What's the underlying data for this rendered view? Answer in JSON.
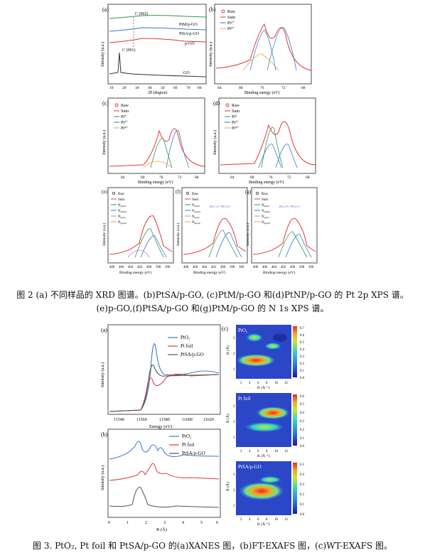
{
  "fig2": {
    "a": {
      "letter": "(a)",
      "labels": [
        "PtM/p-GO",
        "PtSA/p-GO",
        "p-GO",
        "GO"
      ],
      "peak002": "C (002)",
      "peak001": "C (001)",
      "ylabel": "Intensity (a.u.)",
      "xlabel": "2θ (degree)",
      "ticks": [
        "10",
        "20",
        "30",
        "40",
        "50",
        "60",
        "70",
        "80"
      ]
    },
    "b": {
      "letter": "(b)",
      "legend": [
        "Raw",
        "Sum",
        "Pt²⁺",
        "Pt⁴⁺"
      ],
      "ylabel": "Intensity (a.u.)",
      "xlabel": "Binding energy (eV)",
      "ticks": [
        "84",
        "80",
        "76",
        "72",
        "68"
      ]
    },
    "c": {
      "letter": "(c)",
      "legend": [
        "Raw",
        "Sum",
        "Pt⁰",
        "Pt²⁺",
        "Pt⁴⁺"
      ],
      "ylabel": "Intensity (a.u.)",
      "xlabel": "Binding energy (eV)",
      "ticks": [
        "84",
        "80",
        "76",
        "72",
        "68"
      ]
    },
    "d": {
      "letter": "(d)",
      "legend": [
        "Raw",
        "Sum",
        "Pt⁰",
        "Pt²⁺",
        "Pt⁴⁺"
      ],
      "ylabel": "Intensity (a.u.)",
      "xlabel": "Binding energy (eV)",
      "ticks": [
        "84",
        "80",
        "76",
        "72",
        "68"
      ]
    },
    "e": {
      "letter": "(e)",
      "legend": [
        "Raw",
        "Sum",
        "N",
        "N",
        "N",
        "N"
      ],
      "subs": [
        "pyrid",
        "amino",
        "pyrro",
        "graph"
      ],
      "ylabel": "Intensity (a.u.)",
      "xlabel": "Binding energy (eV)",
      "ticks": [
        "408",
        "406",
        "404",
        "402",
        "400",
        "398",
        "396"
      ]
    },
    "f": {
      "letter": "(f)",
      "legend": [
        "Raw",
        "Sum",
        "N",
        "N",
        "N",
        "N"
      ],
      "subs": [
        "pyrid",
        "amino",
        "pyrro",
        "graph"
      ],
      "note": "400.2 eV 398.4 eV",
      "ylabel": "Intensity (a.u.)",
      "xlabel": "Binding energy (eV)",
      "ticks": [
        "408",
        "406",
        "404",
        "402",
        "400",
        "398",
        "396"
      ]
    },
    "g": {
      "letter": "(g)",
      "legend": [
        "Raw",
        "Sum",
        "N",
        "N",
        "N",
        "N"
      ],
      "subs": [
        "pyrid",
        "amino",
        "pyrro",
        "graph"
      ],
      "note": "400.2 eV 398.4 eV",
      "ylabel": "Intensity (a.u.)",
      "xlabel": "Binding energy (eV)",
      "ticks": [
        "408",
        "406",
        "404",
        "402",
        "400",
        "398",
        "396"
      ]
    },
    "caption_line1": "图 2 (a) 不同样品的 XRD 图谱。(b)PtSA/p-GO, (c)PtM/p-GO 和(d)PtNP/p-GO 的 Pt 2p XPS 谱。",
    "caption_line2": "(e)p-GO,(f)PtSA/p-GO 和(g)PtM/p-GO 的 N 1s XPS 谱。"
  },
  "fig3": {
    "a": {
      "letter": "(a)",
      "legend": [
        "PtO₂",
        "Pt foil",
        "PtSA/p-GO"
      ],
      "ylabel": "Intensity (a.u.)",
      "xlabel": "Energy (eV)",
      "ticks": [
        "11540",
        "11560",
        "11580",
        "11600",
        "11620"
      ]
    },
    "b": {
      "letter": "(b)",
      "legend": [
        "PtO₂",
        "Pt foil",
        "PtSA/p-GO"
      ],
      "ylabel": "Intensity (a.u.)",
      "xlabel": "R (Å)",
      "ticks": [
        "0",
        "1",
        "2",
        "3",
        "4",
        "5",
        "6"
      ]
    },
    "c": {
      "letter": "(c)",
      "maps": [
        {
          "label": "PtO₂",
          "scale": [
            "0.7",
            "0.6",
            "0.5",
            "0.4",
            "0.3",
            "0.2",
            "0.1",
            "0.0"
          ]
        },
        {
          "label": "Pt foil",
          "scale": [
            "0.6",
            "0.5",
            "0.4",
            "0.3",
            "0.2",
            "0.1",
            "0.0"
          ]
        },
        {
          "label": "PtSA/p-GO",
          "scale": [
            "0.5",
            "0.4",
            "0.3",
            "0.2",
            "0.1",
            "0.0"
          ]
        }
      ],
      "xlabel": "K (Å⁻¹)",
      "ylabel": "R (Å)",
      "xticks": [
        "2",
        "4",
        "6",
        "8",
        "10",
        "12"
      ],
      "yticks": [
        "1",
        "2",
        "3"
      ]
    },
    "caption": "图 3. PtO₂, Pt foil  和 PtSA/p-GO 的(a)XANES 图，(b)FT-EXAFS 图，(c)WT-EXAFS 图。"
  },
  "colors": {
    "red": "#e8333a",
    "blue": "#3a78c9",
    "green": "#2e9b4a",
    "orange": "#e8a23a",
    "purple": "#c77ad8",
    "gray": "#555555"
  }
}
